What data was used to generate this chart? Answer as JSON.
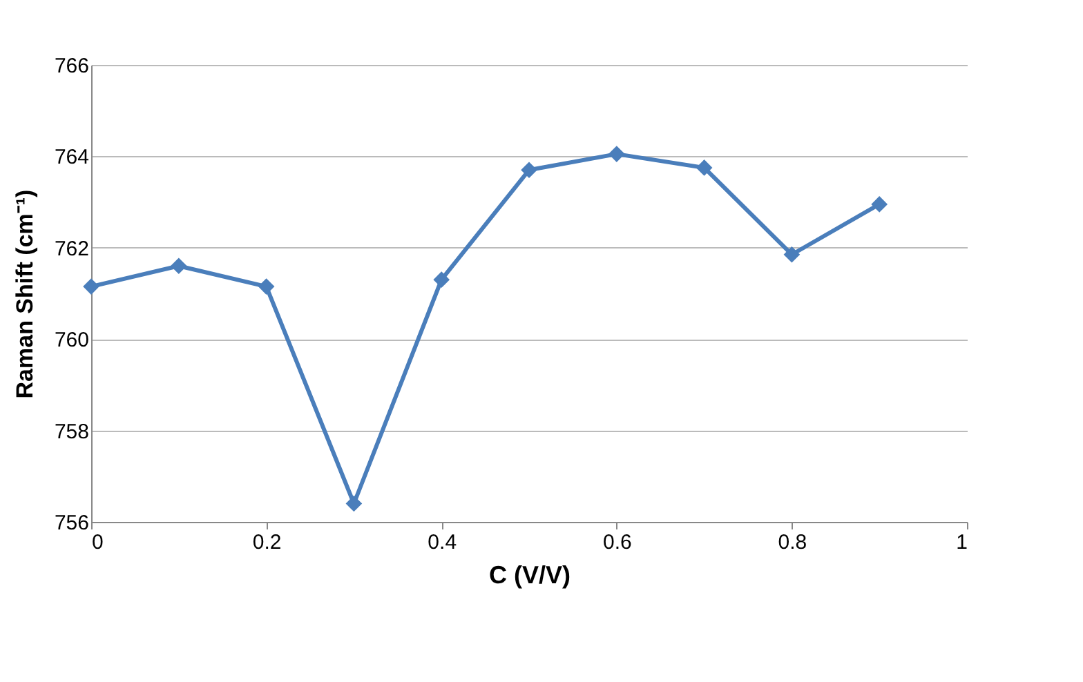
{
  "chart_data": {
    "type": "line",
    "xlabel": "C (V/V)",
    "ylabel": "Raman Shift (cm⁻¹)",
    "x": [
      0,
      0.1,
      0.2,
      0.3,
      0.4,
      0.5,
      0.6,
      0.7,
      0.8,
      0.9
    ],
    "series": [
      {
        "color": "#4a7ebb",
        "values": [
          761.15,
          761.6,
          761.15,
          756.4,
          761.3,
          763.7,
          764.05,
          763.75,
          761.85,
          762.95
        ]
      }
    ],
    "xlim": [
      0,
      1
    ],
    "xticks": [
      0,
      0.2,
      0.4,
      0.6,
      0.8,
      1
    ],
    "ylim": [
      756,
      766
    ],
    "yticks": [
      756,
      758,
      760,
      762,
      764,
      766
    ],
    "grid": "y",
    "marker": "diamond",
    "line_style": "solid"
  }
}
